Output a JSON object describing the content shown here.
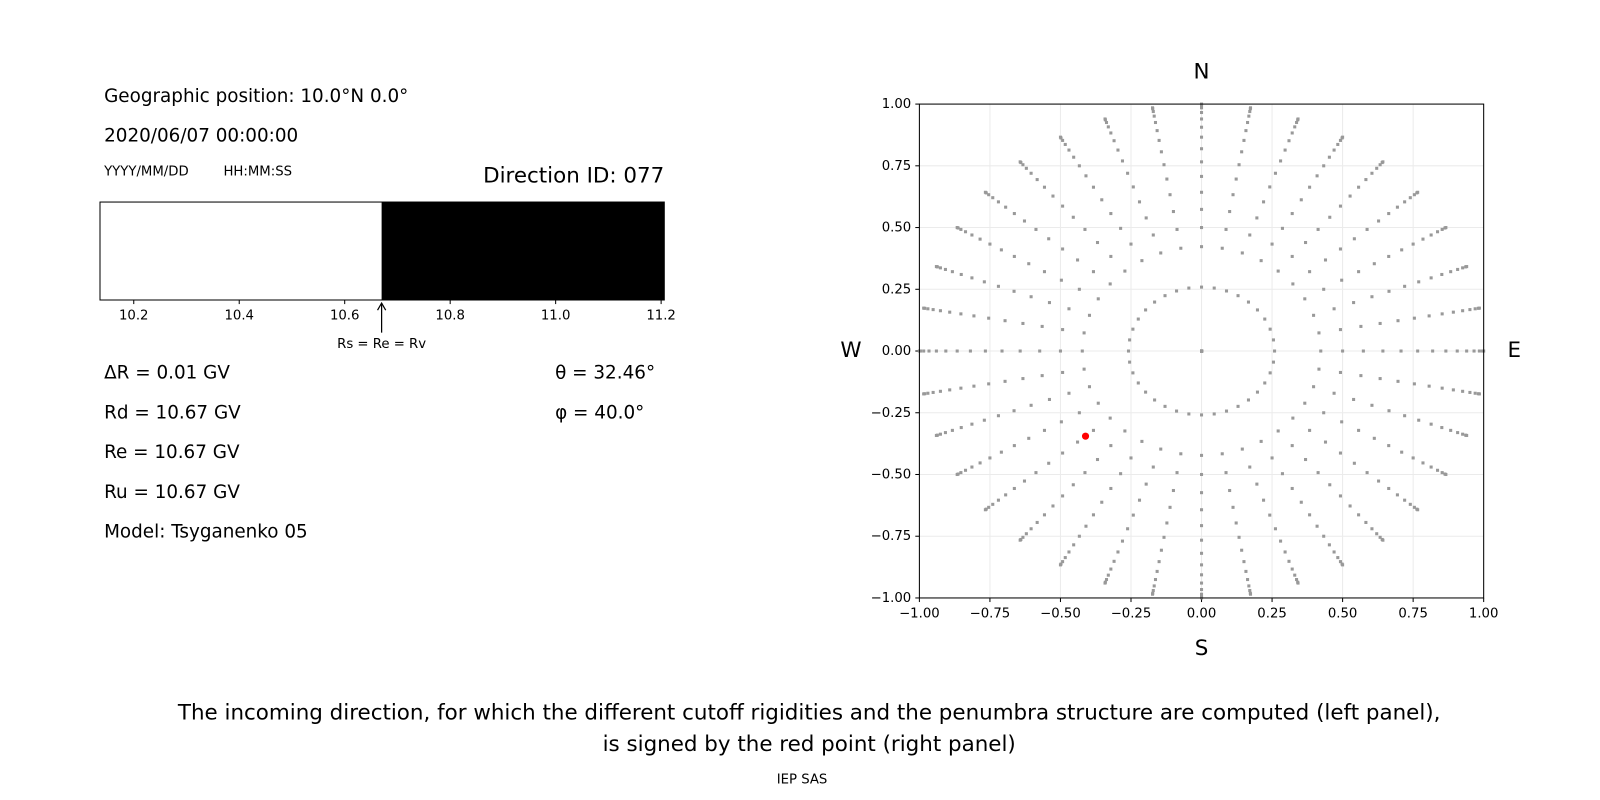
{
  "header": {
    "position": "Geographic position: 10.0°N 0.0°",
    "datetime": "2020/06/07 00:00:00",
    "date_format": "YYYY/MM/DD",
    "time_format": "HH:MM:SS",
    "direction_id": "Direction ID: 077"
  },
  "rigidity": {
    "delta": "ΔR = 0.01 GV",
    "rd": "Rd = 10.67 GV",
    "re": "Re = 10.67 GV",
    "ru": "Ru = 10.67 GV",
    "model": "Model: Tsyganenko 05",
    "theta": {
      "value": 32.46,
      "label": "θ = 32.46°"
    },
    "phi": {
      "value": 40.0,
      "label": "φ = 40.0°"
    }
  },
  "chart_data": [
    {
      "type": "penumbra",
      "xlim": [
        10.136,
        11.206
      ],
      "xticks": [
        10.2,
        10.4,
        10.6,
        10.8,
        {
          "value": 11,
          "label": "11.0"
        },
        11.2
      ],
      "cutoff": 10.67,
      "cutoff_label": "Rs = Re = Rv",
      "colors": {
        "below": "#ffffff",
        "above": "#000000"
      }
    },
    {
      "type": "sky",
      "xlim": [
        -1,
        1
      ],
      "ylim": [
        -1,
        1
      ],
      "xticks": [
        {
          "value": -1,
          "label": "−1.00"
        },
        {
          "value": -0.75,
          "label": "−0.75"
        },
        {
          "value": -0.5,
          "label": "−0.50"
        },
        {
          "value": -0.25,
          "label": "−0.25"
        },
        {
          "value": 0,
          "label": "0.00"
        },
        {
          "value": 0.25,
          "label": "0.25"
        },
        {
          "value": 0.5,
          "label": "0.50"
        },
        {
          "value": 0.75,
          "label": "0.75"
        },
        {
          "value": 1,
          "label": "1.00"
        }
      ],
      "yticks": [
        {
          "value": -1,
          "label": "−1.00"
        },
        {
          "value": -0.75,
          "label": "−0.75"
        },
        {
          "value": -0.5,
          "label": "−0.50"
        },
        {
          "value": -0.25,
          "label": "−0.25"
        },
        {
          "value": 0,
          "label": "0.00"
        },
        {
          "value": 0.25,
          "label": "0.25"
        },
        {
          "value": 0.5,
          "label": "0.50"
        },
        {
          "value": 0.75,
          "label": "0.75"
        },
        {
          "value": 1,
          "label": "1.00"
        }
      ],
      "grid": true,
      "labels": {
        "north": "N",
        "south": "S",
        "west": "W",
        "east": "E"
      },
      "zenith_angles": [
        0,
        15,
        25,
        30,
        35,
        40,
        45,
        50,
        55,
        60,
        65,
        70,
        75,
        80,
        85,
        90
      ],
      "azimuths": [
        0,
        10,
        20,
        30,
        40,
        50,
        60,
        70,
        80,
        90,
        100,
        110,
        120,
        130,
        140,
        150,
        160,
        170,
        180,
        190,
        200,
        210,
        220,
        230,
        240,
        250,
        260,
        270,
        280,
        290,
        300,
        310,
        320,
        330,
        340,
        350
      ],
      "point_color": "#999999",
      "highlight_color": "#ff0000"
    }
  ],
  "caption": [
    "The incoming direction, for which the different cutoff rigidities and the penumbra structure are computed (left panel),",
    "is signed by the red point (right panel)"
  ],
  "footer": "IEP SAS"
}
